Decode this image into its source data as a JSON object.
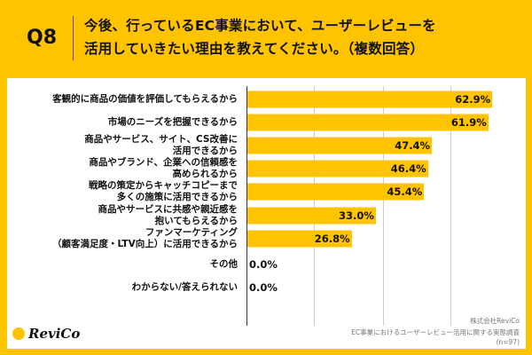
{
  "header": {
    "q_number": "Q8",
    "title_line1": "今後、行っているEC事業において、ユーザーレビューを",
    "title_line2": "活用していきたい理由を教えてください。（複数回答）"
  },
  "chart_data": {
    "type": "bar",
    "orientation": "horizontal",
    "categories": [
      "客観的に商品の価値を評価してもらえるから",
      "市場のニーズを把握できるから",
      "商品やサービス、サイト、CS改善に\n活用できるから",
      "商品やブランド、企業への信頼感を\n高められるから",
      "戦略の策定からキャッチコピーまで\n多くの施策に活用できるから",
      "商品やサービスに共感や親近感を\n抱いてもらえるから",
      "ファンマーケティング\n（顧客満足度・LTV向上）に活用できるから",
      "その他",
      "わからない/答えられない"
    ],
    "values": [
      62.9,
      61.9,
      47.4,
      46.4,
      45.4,
      33.0,
      26.8,
      0.0,
      0.0
    ],
    "value_labels": [
      "62.9%",
      "61.9%",
      "47.4%",
      "46.4%",
      "45.4%",
      "33.0%",
      "26.8%",
      "0.0%",
      "0.0%"
    ],
    "bar_color": "#FFC300",
    "grid": true
  },
  "source": {
    "company": "株式会社ReviCo",
    "survey": "EC事業におけるユーザーレビュー活用に関する実態調査",
    "n": "(n=97)"
  },
  "logo": {
    "text": "ReviCo"
  }
}
